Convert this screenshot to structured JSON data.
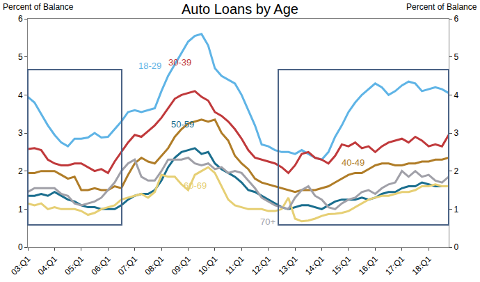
{
  "chart_data": {
    "type": "line",
    "title": "Auto Loans by Age",
    "y_label": "Percent of Balance",
    "y2_label": "Percent of Balance",
    "categories": [
      "03:Q1",
      null,
      null,
      null,
      "04:Q1",
      null,
      null,
      null,
      "05:Q1",
      null,
      null,
      null,
      "06:Q1",
      null,
      null,
      null,
      "07:Q1",
      null,
      null,
      null,
      "08:Q1",
      null,
      null,
      null,
      "09:Q1",
      null,
      null,
      null,
      "10:Q1",
      null,
      null,
      null,
      "11:Q1",
      null,
      null,
      null,
      "12:Q1",
      null,
      null,
      null,
      "13:Q1",
      null,
      null,
      null,
      "14:Q1",
      null,
      null,
      null,
      "15:Q1",
      null,
      null,
      null,
      "16:Q1",
      null,
      null,
      null,
      "17:Q1",
      null,
      null,
      null,
      "18:Q1",
      null,
      null,
      null
    ],
    "ylim": [
      0,
      6
    ],
    "yticks": [
      0,
      1,
      2,
      3,
      4,
      5,
      6
    ],
    "y2lim": [
      0,
      6
    ],
    "y2ticks": [
      0,
      1,
      2,
      3,
      4,
      5,
      6
    ],
    "grid": false,
    "series": [
      {
        "name": "18-29",
        "color": "#5fb4e6",
        "values": [
          3.95,
          3.8,
          3.5,
          3.2,
          2.95,
          2.75,
          2.65,
          2.85,
          2.85,
          2.88,
          3.0,
          2.88,
          2.9,
          3.1,
          3.3,
          3.55,
          3.6,
          3.55,
          3.6,
          3.65,
          4.1,
          4.5,
          4.8,
          5.1,
          5.4,
          5.55,
          5.6,
          5.3,
          4.7,
          4.5,
          4.4,
          4.3,
          4.0,
          3.6,
          3.2,
          2.7,
          2.65,
          2.55,
          2.5,
          2.5,
          2.45,
          2.55,
          2.45,
          2.35,
          2.3,
          2.5,
          2.9,
          3.2,
          3.55,
          3.8,
          4.0,
          4.15,
          4.3,
          4.2,
          4.0,
          4.1,
          4.25,
          4.35,
          4.3,
          4.1,
          4.15,
          4.2,
          4.15,
          4.05
        ]
      },
      {
        "name": "30-39",
        "color": "#c0393b",
        "values": [
          2.58,
          2.6,
          2.55,
          2.3,
          2.2,
          2.15,
          2.15,
          2.2,
          2.2,
          2.1,
          2.0,
          2.05,
          1.95,
          2.25,
          2.5,
          2.75,
          2.95,
          2.9,
          3.05,
          3.2,
          3.4,
          3.65,
          3.9,
          4.0,
          4.05,
          4.1,
          3.95,
          3.85,
          3.55,
          3.45,
          3.3,
          3.1,
          2.85,
          2.55,
          2.35,
          2.3,
          2.25,
          2.2,
          2.1,
          1.95,
          2.15,
          2.45,
          2.5,
          2.35,
          2.3,
          2.2,
          2.4,
          2.7,
          2.65,
          2.75,
          2.6,
          2.65,
          2.5,
          2.65,
          2.75,
          2.8,
          2.85,
          2.75,
          2.9,
          2.8,
          2.65,
          2.7,
          2.65,
          2.95
        ]
      },
      {
        "name": "40-49",
        "color": "#b07d28",
        "values": [
          1.95,
          1.95,
          2.0,
          2.0,
          2.0,
          1.9,
          1.8,
          1.85,
          1.5,
          1.5,
          1.55,
          1.5,
          1.5,
          1.6,
          1.55,
          1.9,
          2.2,
          2.35,
          2.25,
          2.2,
          2.4,
          2.6,
          2.9,
          3.1,
          3.25,
          3.3,
          3.35,
          3.3,
          3.35,
          3.0,
          2.8,
          2.4,
          2.2,
          2.05,
          1.8,
          1.7,
          1.65,
          1.6,
          1.55,
          1.5,
          1.45,
          1.5,
          1.5,
          1.5,
          1.55,
          1.6,
          1.7,
          1.8,
          1.9,
          1.95,
          1.95,
          2.05,
          2.15,
          2.2,
          2.2,
          2.15,
          2.15,
          2.2,
          2.2,
          2.25,
          2.25,
          2.3,
          2.3,
          2.35
        ]
      },
      {
        "name": "50-59",
        "color": "#1a6e8e",
        "values": [
          1.35,
          1.35,
          1.4,
          1.35,
          1.45,
          1.35,
          1.25,
          1.2,
          1.1,
          1.05,
          1.05,
          1.0,
          1.0,
          1.0,
          1.1,
          1.25,
          1.35,
          1.4,
          1.4,
          1.5,
          1.75,
          2.1,
          2.35,
          2.5,
          2.55,
          2.6,
          2.45,
          2.5,
          2.2,
          2.05,
          1.95,
          1.85,
          1.7,
          1.5,
          1.45,
          1.35,
          1.25,
          1.15,
          1.05,
          1.0,
          1.05,
          1.1,
          1.1,
          1.05,
          1.0,
          1.1,
          1.2,
          1.25,
          1.25,
          1.25,
          1.3,
          1.25,
          1.3,
          1.4,
          1.45,
          1.45,
          1.55,
          1.6,
          1.6,
          1.7,
          1.65,
          1.6,
          1.6,
          1.6
        ]
      },
      {
        "name": "60-69",
        "color": "#e6cf74",
        "values": [
          1.15,
          1.1,
          1.15,
          1.0,
          1.05,
          1.0,
          1.0,
          1.0,
          0.95,
          0.85,
          0.9,
          1.0,
          1.05,
          1.1,
          1.25,
          1.3,
          1.35,
          1.4,
          1.3,
          1.45,
          1.9,
          1.85,
          1.85,
          1.65,
          1.5,
          1.9,
          2.0,
          2.1,
          1.95,
          1.6,
          1.25,
          1.1,
          1.05,
          1.0,
          1.0,
          1.0,
          0.95,
          0.95,
          1.0,
          1.3,
          0.75,
          0.68,
          0.7,
          0.75,
          0.82,
          0.87,
          0.88,
          0.9,
          0.95,
          1.05,
          1.15,
          1.25,
          1.3,
          1.35,
          1.35,
          1.4,
          1.45,
          1.45,
          1.5,
          1.6,
          1.6,
          1.65,
          1.6,
          1.6
        ]
      },
      {
        "name": "70+",
        "color": "#a0a0a8",
        "values": [
          1.45,
          1.55,
          1.55,
          1.55,
          1.55,
          1.4,
          1.35,
          1.15,
          1.1,
          1.15,
          1.2,
          1.3,
          1.5,
          1.7,
          2.0,
          2.2,
          2.3,
          1.85,
          1.75,
          1.75,
          2.0,
          2.3,
          2.3,
          2.3,
          2.35,
          2.2,
          2.15,
          2.2,
          2.05,
          2.1,
          1.95,
          2.0,
          1.95,
          1.75,
          1.55,
          1.3,
          1.2,
          1.1,
          1.05,
          1.0,
          1.3,
          1.5,
          1.6,
          1.35,
          1.25,
          1.05,
          1.0,
          1.15,
          1.25,
          1.3,
          1.45,
          1.5,
          1.4,
          1.55,
          1.65,
          1.7,
          2.0,
          1.85,
          2.0,
          1.85,
          1.9,
          1.75,
          1.7,
          1.85
        ]
      }
    ]
  }
}
